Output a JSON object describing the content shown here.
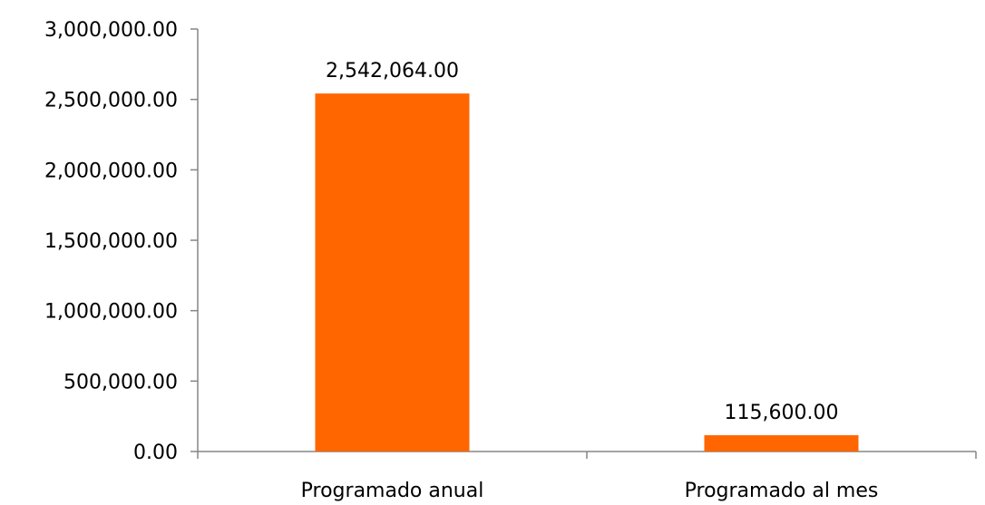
{
  "chart_data": {
    "type": "bar",
    "categories": [
      "Programado anual",
      "Programado al mes"
    ],
    "values": [
      2542064,
      115600
    ],
    "data_labels": [
      "2,542,064.00",
      "115,600.00"
    ],
    "ylim": [
      0,
      3000000
    ],
    "yticks": [
      0,
      500000,
      1000000,
      1500000,
      2000000,
      2500000,
      3000000
    ],
    "ytick_labels": [
      "0.00",
      "500,000.00",
      "1,000,000.00",
      "1,500,000.00",
      "2,000,000.00",
      "2,500,000.00",
      "3,000,000.00"
    ],
    "grid": false,
    "legend": "none",
    "bar_color": "#FF6600",
    "axis_color": "#868686"
  }
}
